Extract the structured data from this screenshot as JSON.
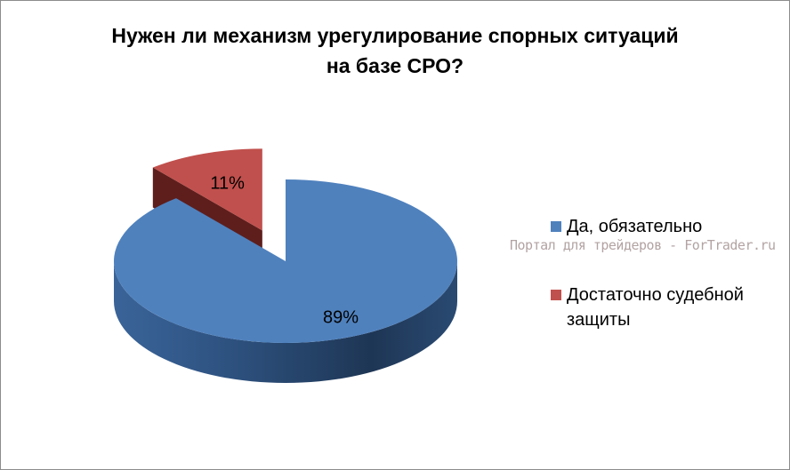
{
  "chart_data": {
    "type": "pie3d",
    "title": "Нужен ли механизм урегулирование спорных ситуаций на базе СРО?",
    "categories": [
      "Да, обязательно",
      "Достаточно судебной защиты"
    ],
    "values": [
      89,
      11
    ],
    "value_labels": [
      "89%",
      "11%"
    ],
    "colors": [
      "#4f81bd",
      "#c0504d"
    ],
    "legend": "right",
    "watermark": "Портал для трейдеров - ForTrader.ru"
  }
}
